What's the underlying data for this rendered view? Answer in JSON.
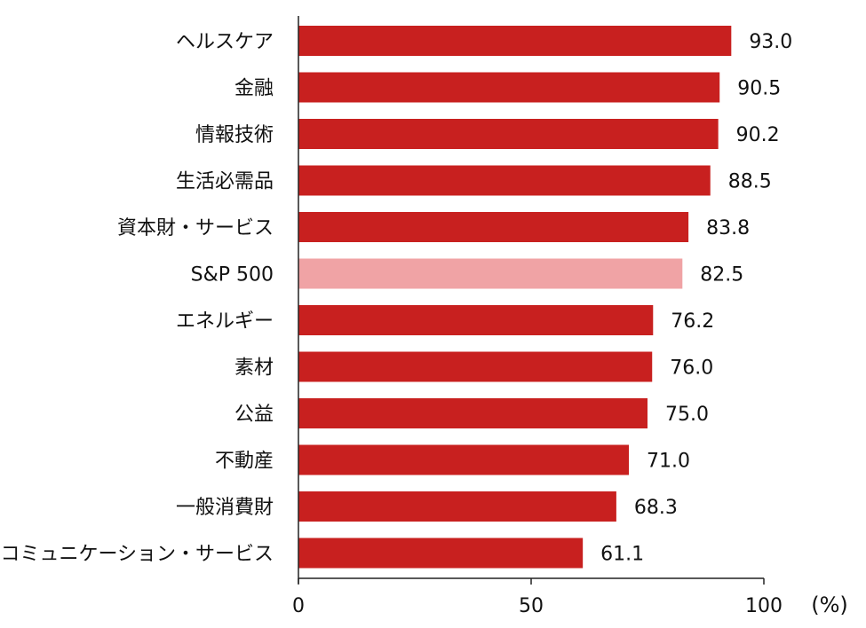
{
  "chart_data": {
    "type": "bar",
    "orientation": "horizontal",
    "categories": [
      "ヘルスケア",
      "金融",
      "情報技術",
      "生活必需品",
      "資本財・サービス",
      "S&P 500",
      "エネルギー",
      "素材",
      "公益",
      "不動産",
      "一般消費財",
      "コミュニケーション・サービス"
    ],
    "values": [
      93.0,
      90.5,
      90.2,
      88.5,
      83.8,
      82.5,
      76.2,
      76.0,
      75.0,
      71.0,
      68.3,
      61.1
    ],
    "value_labels": [
      "93.0",
      "90.5",
      "90.2",
      "88.5",
      "83.8",
      "82.5",
      "76.2",
      "76.0",
      "75.0",
      "71.0",
      "68.3",
      "61.1"
    ],
    "highlight_category": "S&P 500",
    "colors": {
      "bar": "#c8201f",
      "highlight": "#f0a3a5"
    },
    "xlim": [
      0,
      100
    ],
    "xticks": [
      0,
      50,
      100
    ],
    "xtick_labels": [
      "0",
      "50",
      "100"
    ],
    "unit": "(%)",
    "title": "",
    "xlabel": "",
    "ylabel": "",
    "grid": false,
    "legend": "none"
  }
}
